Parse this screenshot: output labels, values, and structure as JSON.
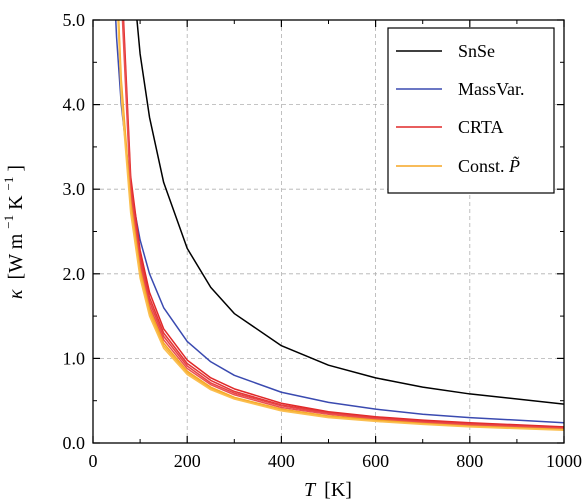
{
  "chart_data": {
    "type": "line",
    "xlabel_symbol": "T",
    "xlabel_unit": "[K]",
    "ylabel_symbol": "κ",
    "ylabel_unit_W": "[W m",
    "ylabel_exp1": "−1",
    "ylabel_unit_K": " K",
    "ylabel_exp2": "−1",
    "ylabel_close": "]",
    "xlim": [
      0,
      1000
    ],
    "ylim": [
      0.0,
      5.0
    ],
    "x_ticks": [
      0,
      200,
      400,
      600,
      800,
      1000
    ],
    "x_tick_labels": [
      "0",
      "200",
      "400",
      "600",
      "800",
      "1000"
    ],
    "y_ticks": [
      0,
      1,
      2,
      3,
      4,
      5
    ],
    "y_tick_labels": [
      "0.0",
      "1.0",
      "2.0",
      "3.0",
      "4.0",
      "5.0"
    ],
    "grid": true,
    "legend_position": "top-right",
    "series": [
      {
        "name": "SnSe",
        "color": "#000000",
        "x": [
          80,
          100,
          120,
          150,
          200,
          250,
          300,
          400,
          500,
          600,
          700,
          800,
          1000
        ],
        "y": [
          5.8,
          4.6,
          3.85,
          3.08,
          2.3,
          1.84,
          1.53,
          1.15,
          0.92,
          0.77,
          0.66,
          0.58,
          0.46
        ]
      },
      {
        "name": "MassVar.",
        "color": "#3a4ab0",
        "x": [
          40,
          50,
          60,
          80,
          100,
          120,
          150,
          200,
          250,
          300,
          400,
          500,
          600,
          700,
          800,
          1000
        ],
        "y": [
          6.0,
          4.8,
          4.0,
          3.0,
          2.4,
          2.0,
          1.6,
          1.2,
          0.96,
          0.8,
          0.6,
          0.48,
          0.4,
          0.34,
          0.3,
          0.24
        ]
      },
      {
        "name": "CRTA",
        "color": "#e02828",
        "x": [
          60,
          80,
          100,
          120,
          150,
          200,
          250,
          300,
          400,
          500,
          600,
          700,
          800,
          1000
        ],
        "y": [
          5.6,
          3.15,
          2.28,
          1.78,
          1.35,
          0.98,
          0.77,
          0.64,
          0.47,
          0.37,
          0.31,
          0.27,
          0.24,
          0.19
        ]
      },
      {
        "name": "CRTA",
        "color": "#e43535",
        "x": [
          60,
          80,
          100,
          120,
          150,
          200,
          250,
          300,
          400,
          500,
          600,
          700,
          800,
          1000
        ],
        "y": [
          5.5,
          3.08,
          2.22,
          1.72,
          1.3,
          0.94,
          0.74,
          0.61,
          0.45,
          0.36,
          0.3,
          0.26,
          0.23,
          0.18
        ]
      },
      {
        "name": "CRTA",
        "color": "#e84444",
        "x": [
          60,
          80,
          100,
          120,
          150,
          200,
          250,
          300,
          400,
          500,
          600,
          700,
          800,
          1000
        ],
        "y": [
          5.4,
          3.0,
          2.16,
          1.67,
          1.26,
          0.91,
          0.71,
          0.59,
          0.44,
          0.35,
          0.29,
          0.25,
          0.22,
          0.175
        ]
      },
      {
        "name": "CRTA",
        "color": "#ea5050",
        "x": [
          60,
          80,
          100,
          120,
          150,
          200,
          250,
          300,
          400,
          500,
          600,
          700,
          800,
          1000
        ],
        "y": [
          5.3,
          2.93,
          2.1,
          1.62,
          1.22,
          0.88,
          0.69,
          0.57,
          0.42,
          0.34,
          0.28,
          0.24,
          0.21,
          0.17
        ]
      },
      {
        "name": "Const. P̃",
        "color": "#f5a623",
        "x": [
          50,
          60,
          80,
          100,
          120,
          150,
          200,
          250,
          300,
          400,
          500,
          600,
          700,
          800,
          1000
        ],
        "y": [
          5.6,
          4.3,
          2.85,
          2.05,
          1.58,
          1.18,
          0.85,
          0.66,
          0.54,
          0.4,
          0.32,
          0.27,
          0.23,
          0.2,
          0.16
        ]
      },
      {
        "name": "Const. P̃",
        "color": "#f8b33a",
        "x": [
          50,
          60,
          80,
          100,
          120,
          150,
          200,
          250,
          300,
          400,
          500,
          600,
          700,
          800,
          1000
        ],
        "y": [
          5.5,
          4.2,
          2.78,
          2.0,
          1.54,
          1.15,
          0.83,
          0.645,
          0.53,
          0.39,
          0.31,
          0.26,
          0.225,
          0.195,
          0.155
        ]
      },
      {
        "name": "Const. P̃",
        "color": "#fbbf50",
        "x": [
          50,
          60,
          80,
          100,
          120,
          150,
          200,
          250,
          300,
          400,
          500,
          600,
          700,
          800,
          1000
        ],
        "y": [
          5.4,
          4.1,
          2.72,
          1.95,
          1.5,
          1.12,
          0.81,
          0.63,
          0.52,
          0.38,
          0.3,
          0.255,
          0.22,
          0.19,
          0.15
        ]
      }
    ],
    "legend": [
      {
        "label": "SnSe",
        "color": "#000000"
      },
      {
        "label": "MassVar.",
        "color": "#3a4ab0"
      },
      {
        "label": "CRTA",
        "color": "#e02828"
      },
      {
        "label_text": "Const. ",
        "label_symbol": "P̃",
        "color": "#f5a623"
      }
    ]
  }
}
